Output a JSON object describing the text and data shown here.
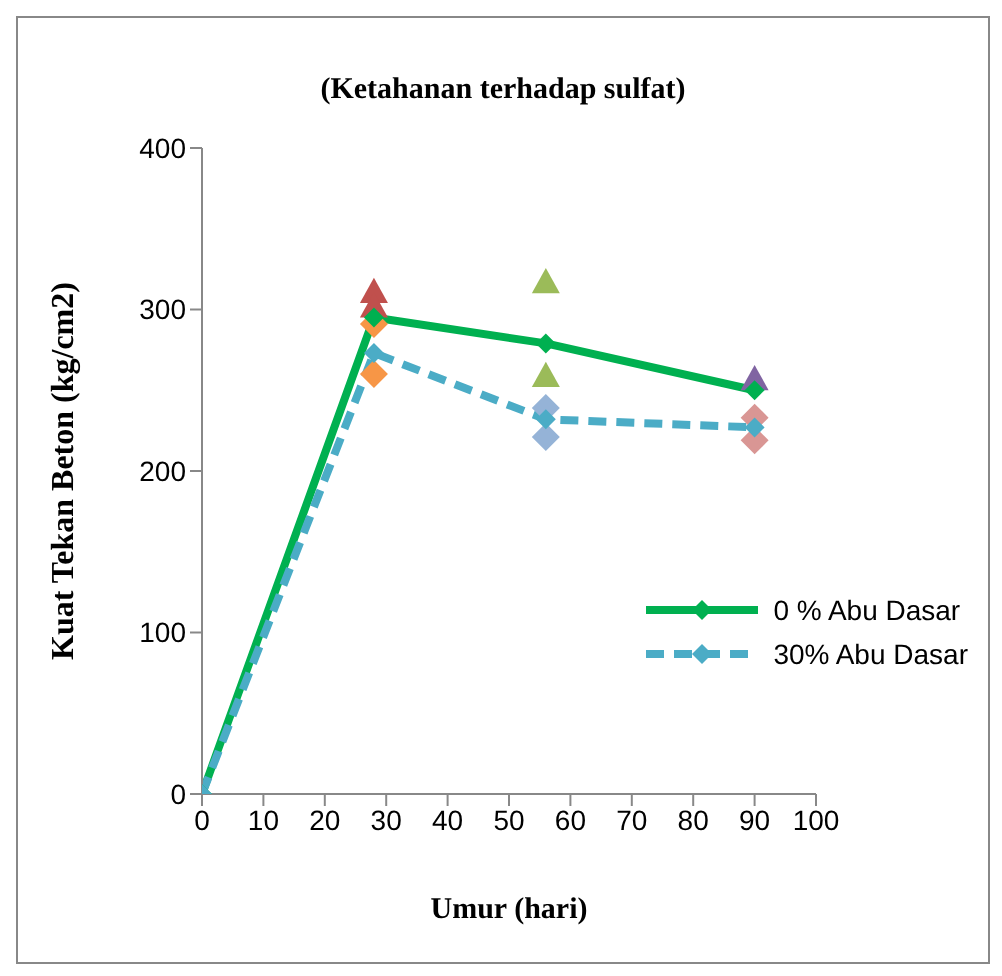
{
  "chart_data": {
    "type": "line",
    "title": "(Ketahanan terhadap sulfat)",
    "xlabel": "Umur (hari)",
    "ylabel": "Kuat Tekan Beton (kg/cm2)",
    "xlim": [
      0,
      100
    ],
    "xticks": [
      0,
      10,
      20,
      30,
      40,
      50,
      60,
      70,
      80,
      90,
      100
    ],
    "ylim": [
      0,
      400
    ],
    "yticks": [
      0,
      100,
      200,
      300,
      400
    ],
    "grid": false,
    "legend": "right",
    "marker": "diamond",
    "series": [
      {
        "type": "scatter",
        "marker": "triangle",
        "color": "#c0504d",
        "x": [
          28,
          28
        ],
        "values": [
          311,
          302
        ]
      },
      {
        "type": "scatter",
        "marker": "diamond",
        "color": "#f79646",
        "x": [
          28,
          28
        ],
        "values": [
          291,
          260
        ]
      },
      {
        "type": "scatter",
        "marker": "triangle",
        "color": "#9bbb59",
        "x": [
          56,
          56
        ],
        "values": [
          317,
          259
        ]
      },
      {
        "type": "scatter",
        "marker": "diamond",
        "color": "#95b3d7",
        "x": [
          56,
          56
        ],
        "values": [
          239,
          221
        ]
      },
      {
        "type": "scatter",
        "marker": "triangle",
        "color": "#8064a2",
        "x": [
          90
        ],
        "values": [
          257
        ]
      },
      {
        "type": "scatter",
        "marker": "diamond",
        "color": "#d99694",
        "x": [
          90,
          90
        ],
        "values": [
          233,
          219
        ]
      },
      {
        "name": "0 % Abu Dasar",
        "color": "#00b050",
        "line_style": "solid",
        "x": [
          0,
          28,
          56,
          90
        ],
        "values": [
          0,
          295,
          279,
          250
        ]
      },
      {
        "name": "30% Abu Dasar",
        "color": "#4bacc6",
        "line_style": "dashed",
        "x": [
          0,
          28,
          56,
          90
        ],
        "values": [
          0,
          273,
          232,
          227
        ]
      }
    ]
  }
}
